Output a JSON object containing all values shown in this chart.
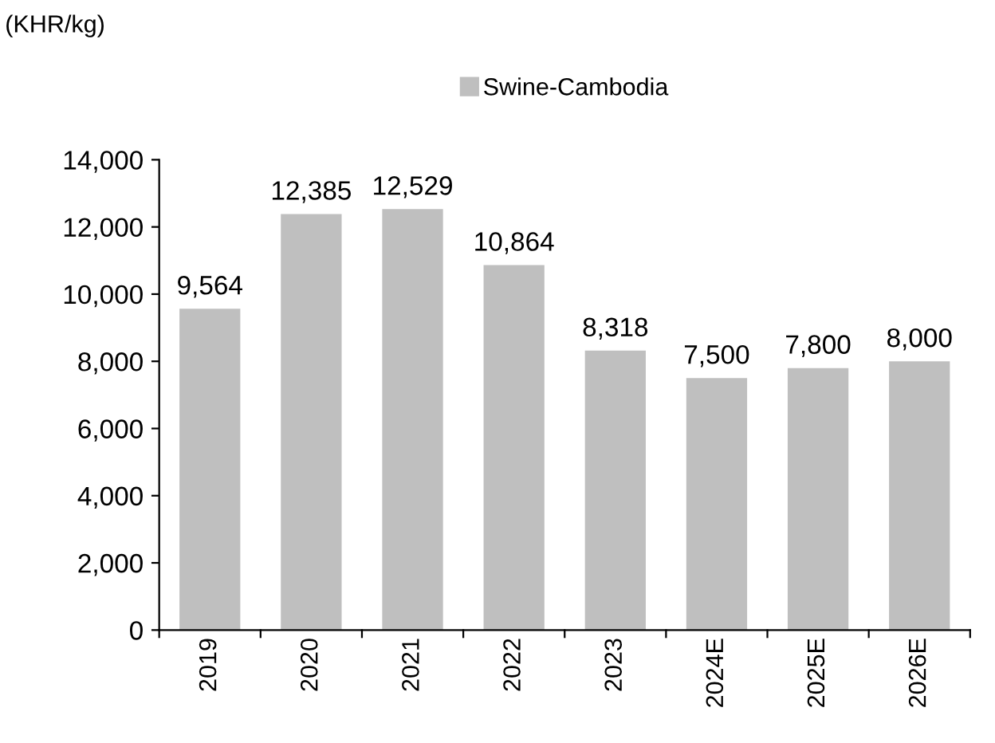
{
  "chart_data": {
    "type": "bar",
    "ylabel": "(KHR/kg)",
    "categories": [
      "2019",
      "2020",
      "2021",
      "2022",
      "2023",
      "2024E",
      "2025E",
      "2026E"
    ],
    "series": [
      {
        "name": "Swine-Cambodia",
        "color": "#bfbfbf",
        "values": [
          9564,
          12385,
          12529,
          10864,
          8318,
          7500,
          7800,
          8000
        ]
      }
    ],
    "ylim": [
      0,
      14000
    ],
    "yticks": [
      {
        "value": 0,
        "label": "0"
      },
      {
        "value": 2000,
        "label": "2,000"
      },
      {
        "value": 4000,
        "label": "4,000"
      },
      {
        "value": 6000,
        "label": "6,000"
      },
      {
        "value": 8000,
        "label": "8,000"
      },
      {
        "value": 10000,
        "label": "10,000"
      },
      {
        "value": 12000,
        "label": "12,000"
      },
      {
        "value": 14000,
        "label": "14,000"
      }
    ],
    "value_labels": [
      "9,564",
      "12,385",
      "12,529",
      "10,864",
      "8,318",
      "7,500",
      "7,800",
      "8,000"
    ],
    "legend": "top",
    "grid": false
  }
}
